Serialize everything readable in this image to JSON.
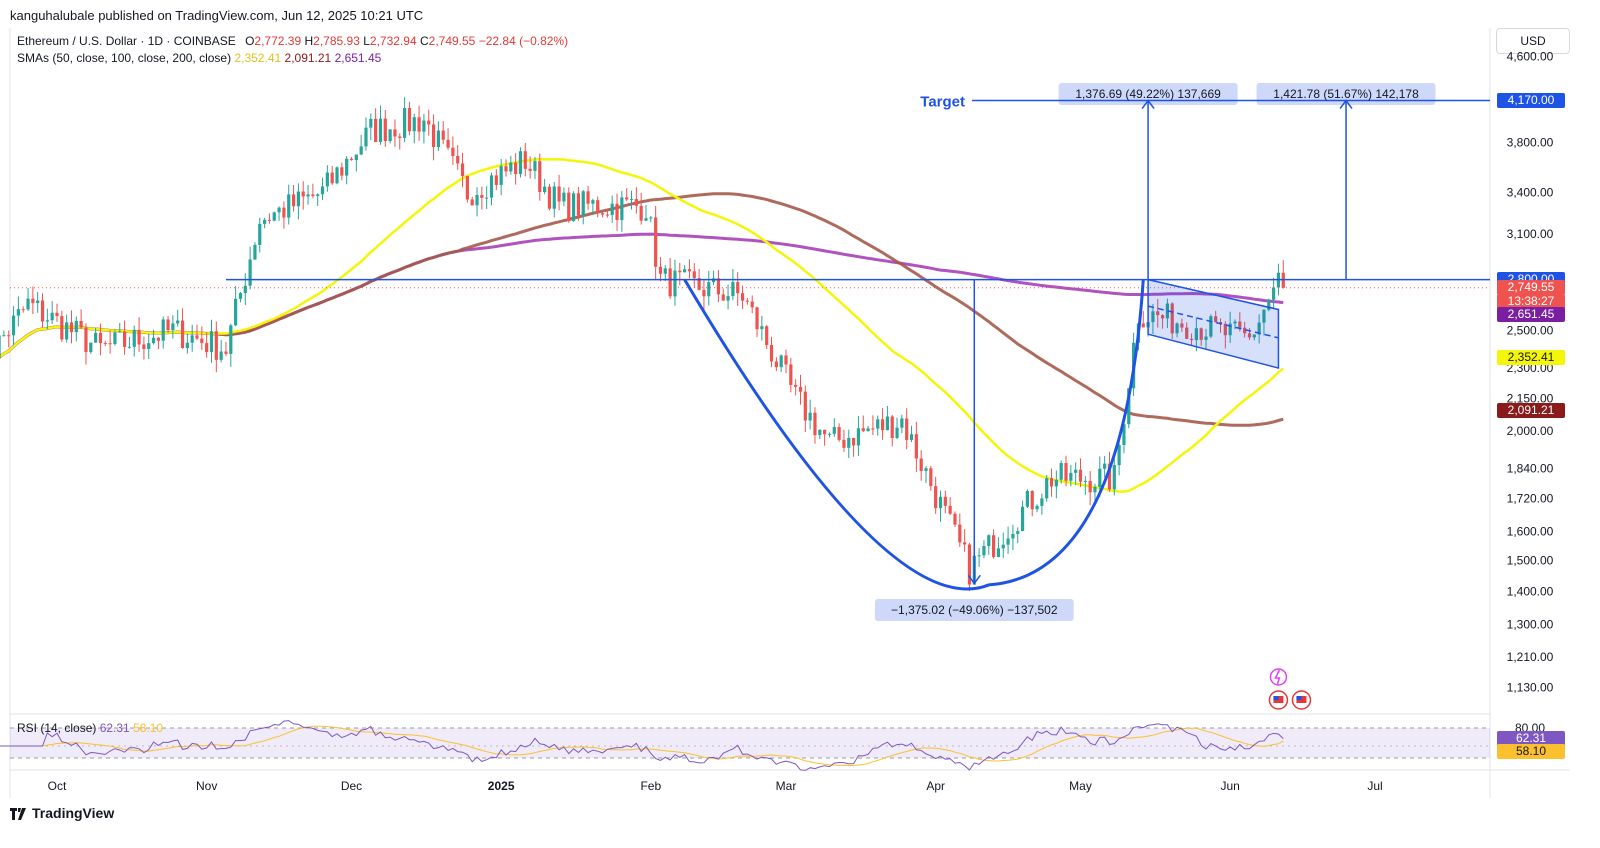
{
  "header": {
    "published": "kanguhalubale published on TradingView.com, Jun 12, 2025 10:21 UTC",
    "symbol": "Ethereum / U.S. Dollar · 1D · COINBASE",
    "o_label": "O",
    "o": "2,772.39",
    "h_label": "H",
    "h": "2,785.93",
    "l_label": "L",
    "l": "2,732.94",
    "c_label": "C",
    "c": "2,749.55",
    "change": "−22.84 (−0.82%)",
    "sma_label": "SMAs (50, close, 100, close, 200, close)",
    "sma50": "2,352.41",
    "sma100": "2,091.21",
    "sma200": "2,651.45"
  },
  "currency": "USD",
  "brand": "TradingView",
  "colors": {
    "up": "#26a69a",
    "down": "#ef5350",
    "sma50": "#f5f50a",
    "sma100": "#a45a4b",
    "sma200": "#9c27b0",
    "drawing": "#1e53e5",
    "rsi": "#7e57c2",
    "rsi_ma": "#fbc02d"
  },
  "price_axis": {
    "ticks": [
      "4,600.00",
      "3,800.00",
      "3,400.00",
      "3,100.00",
      "2,800.00",
      "2,500.00",
      "2,300.00",
      "2,150.00",
      "2,000.00",
      "1,840.00",
      "1,720.00",
      "1,600.00",
      "1,500.00",
      "1,400.00",
      "1,300.00",
      "1,210.00",
      "1,130.00"
    ],
    "tick_values": [
      4600,
      3800,
      3400,
      3100,
      2800,
      2500,
      2300,
      2150,
      2000,
      1840,
      1720,
      1600,
      1500,
      1400,
      1300,
      1210,
      1130
    ],
    "scale": "log",
    "tags": [
      {
        "label": "4,170.00",
        "value": 4170,
        "color": "#1e53e5"
      },
      {
        "label": "2,800.00",
        "value": 2800,
        "color": "#1e53e5"
      },
      {
        "label": "2,749.55",
        "value": 2749.55,
        "color": "#ef5350"
      },
      {
        "label": "13:38:27",
        "value": 2670,
        "color": "#ef5350"
      },
      {
        "label": "2,651.45",
        "value": 2590,
        "color": "#7b1fa2"
      },
      {
        "label": "2,352.41",
        "value": 2352.41,
        "color": "#f5f50a"
      },
      {
        "label": "2,091.21",
        "value": 2091.21,
        "color": "#8b1a1a"
      }
    ]
  },
  "time_axis": {
    "labels": [
      "Oct",
      "Nov",
      "Dec",
      "2025",
      "Feb",
      "Mar",
      "Apr",
      "May",
      "Jun",
      "Jul"
    ],
    "label_dates": [
      "2024-10-01",
      "2024-11-01",
      "2024-12-01",
      "2025-01-01",
      "2025-02-01",
      "2025-03-01",
      "2025-04-01",
      "2025-05-01",
      "2025-06-01",
      "2025-07-01"
    ]
  },
  "annotations": {
    "target_label": "Target",
    "target_value": 4170,
    "neckline_value": 2800,
    "measure_down": "−1,375.02 (−49.06%) −137,502",
    "measure_up1": "1,376.69 (49.22%) 137,669",
    "measure_up2": "1,421.78 (51.67%) 142,178"
  },
  "rsi": {
    "legend": "RSI (14, close)",
    "value": "62.31",
    "ma_value": "58.10",
    "top_tick": "80.00",
    "tag_value": "62.31",
    "tag_ma": "58.10"
  },
  "chart_data": {
    "type": "candlestick",
    "title": "Ethereum / U.S. Dollar · 1D · COINBASE",
    "yscale": "log",
    "ylim": [
      1080,
      4900
    ],
    "series": [
      {
        "name": "ETH/USD",
        "anchors_x": [
          "2024-09-15",
          "2024-09-25",
          "2024-10-10",
          "2024-10-25",
          "2024-11-05",
          "2024-11-12",
          "2024-11-25",
          "2024-12-05",
          "2024-12-16",
          "2024-12-25",
          "2025-01-06",
          "2025-01-13",
          "2025-01-20",
          "2025-01-31",
          "2025-02-03",
          "2025-02-20",
          "2025-03-03",
          "2025-03-10",
          "2025-03-25",
          "2025-04-08",
          "2025-04-15",
          "2025-04-25",
          "2025-05-08",
          "2025-05-13",
          "2025-05-22",
          "2025-06-05",
          "2025-06-11",
          "2025-06-12"
        ],
        "anchors_close": [
          2300,
          2650,
          2400,
          2500,
          2400,
          3200,
          3400,
          3900,
          4000,
          3400,
          3650,
          3300,
          3300,
          3300,
          2800,
          2700,
          2150,
          1950,
          2050,
          1470,
          1600,
          1800,
          1800,
          2600,
          2550,
          2450,
          2800,
          2749.55
        ]
      },
      {
        "name": "SMA 50",
        "value": 2352.41
      },
      {
        "name": "SMA 100",
        "value": 2091.21
      },
      {
        "name": "SMA 200",
        "value": 2651.45
      }
    ],
    "rsi": {
      "name": "RSI (14, close)",
      "last": 62.31,
      "ma_last": 58.1,
      "upper": 80,
      "lower": 30
    }
  }
}
